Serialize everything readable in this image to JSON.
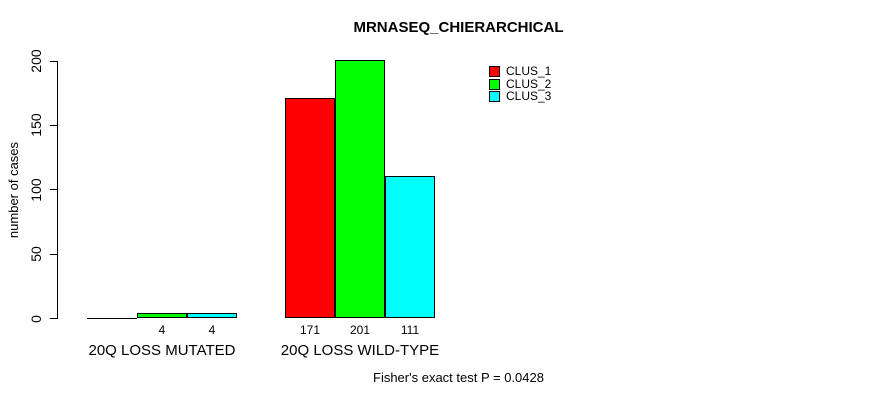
{
  "chart_data": {
    "type": "bar",
    "title": "MRNASEQ_CHIERARCHICAL",
    "xlabel": "",
    "ylabel": "number of cases",
    "ylim": [
      0,
      200
    ],
    "yticks": [
      0,
      50,
      100,
      150,
      200
    ],
    "grid": false,
    "legend_position": "top-right",
    "categories": [
      "20Q LOSS MUTATED",
      "20Q LOSS WILD-TYPE"
    ],
    "series": [
      {
        "name": "CLUS_1",
        "color": "#ff0000",
        "values": [
          0,
          171
        ]
      },
      {
        "name": "CLUS_2",
        "color": "#00ff00",
        "values": [
          4,
          201
        ]
      },
      {
        "name": "CLUS_3",
        "color": "#00ffff",
        "values": [
          4,
          111
        ]
      }
    ],
    "bar_value_labels": [
      [
        "",
        "4",
        "4"
      ],
      [
        "171",
        "201",
        "111"
      ]
    ],
    "annotation": "Fisher's exact test P = 0.0428"
  }
}
